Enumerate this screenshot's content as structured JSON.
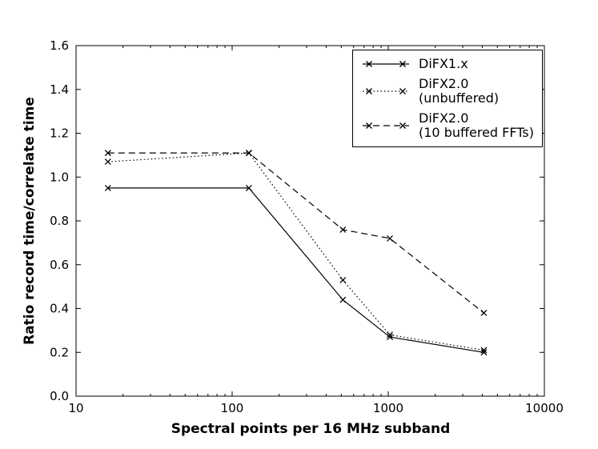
{
  "figure": {
    "background": "#ffffff",
    "line_color": "#000000"
  },
  "chart_data": {
    "type": "line",
    "title": "",
    "xlabel": "Spectral points per 16 MHz subband",
    "ylabel": "Ratio record time/correlate time",
    "x_scale": "log",
    "xlim": [
      10,
      10000
    ],
    "ylim": [
      0.0,
      1.6
    ],
    "x_ticks": [
      10,
      100,
      1000,
      10000
    ],
    "y_ticks": [
      0.0,
      0.2,
      0.4,
      0.6,
      0.8,
      1.0,
      1.2,
      1.4,
      1.6
    ],
    "grid": false,
    "legend_position": "upper right",
    "series": [
      {
        "name": "DiFX1.x",
        "legend_lines": [
          "DiFX1.x"
        ],
        "line_style": "solid",
        "marker": "x",
        "x": [
          16,
          128,
          512,
          1024,
          4096
        ],
        "y": [
          0.95,
          0.95,
          0.44,
          0.27,
          0.2
        ]
      },
      {
        "name": "DiFX2.0 (unbuffered)",
        "legend_lines": [
          "DiFX2.0",
          "(unbuffered)"
        ],
        "line_style": "dotted",
        "marker": "x",
        "x": [
          16,
          128,
          512,
          1024,
          4096
        ],
        "y": [
          1.07,
          1.11,
          0.53,
          0.28,
          0.21
        ]
      },
      {
        "name": "DiFX2.0 (10 buffered FFTs)",
        "legend_lines": [
          "DiFX2.0",
          "(10 buffered FFTs)"
        ],
        "line_style": "dashed",
        "marker": "x",
        "x": [
          16,
          128,
          512,
          1024,
          4096
        ],
        "y": [
          1.11,
          1.11,
          0.76,
          0.72,
          0.38
        ]
      }
    ]
  }
}
